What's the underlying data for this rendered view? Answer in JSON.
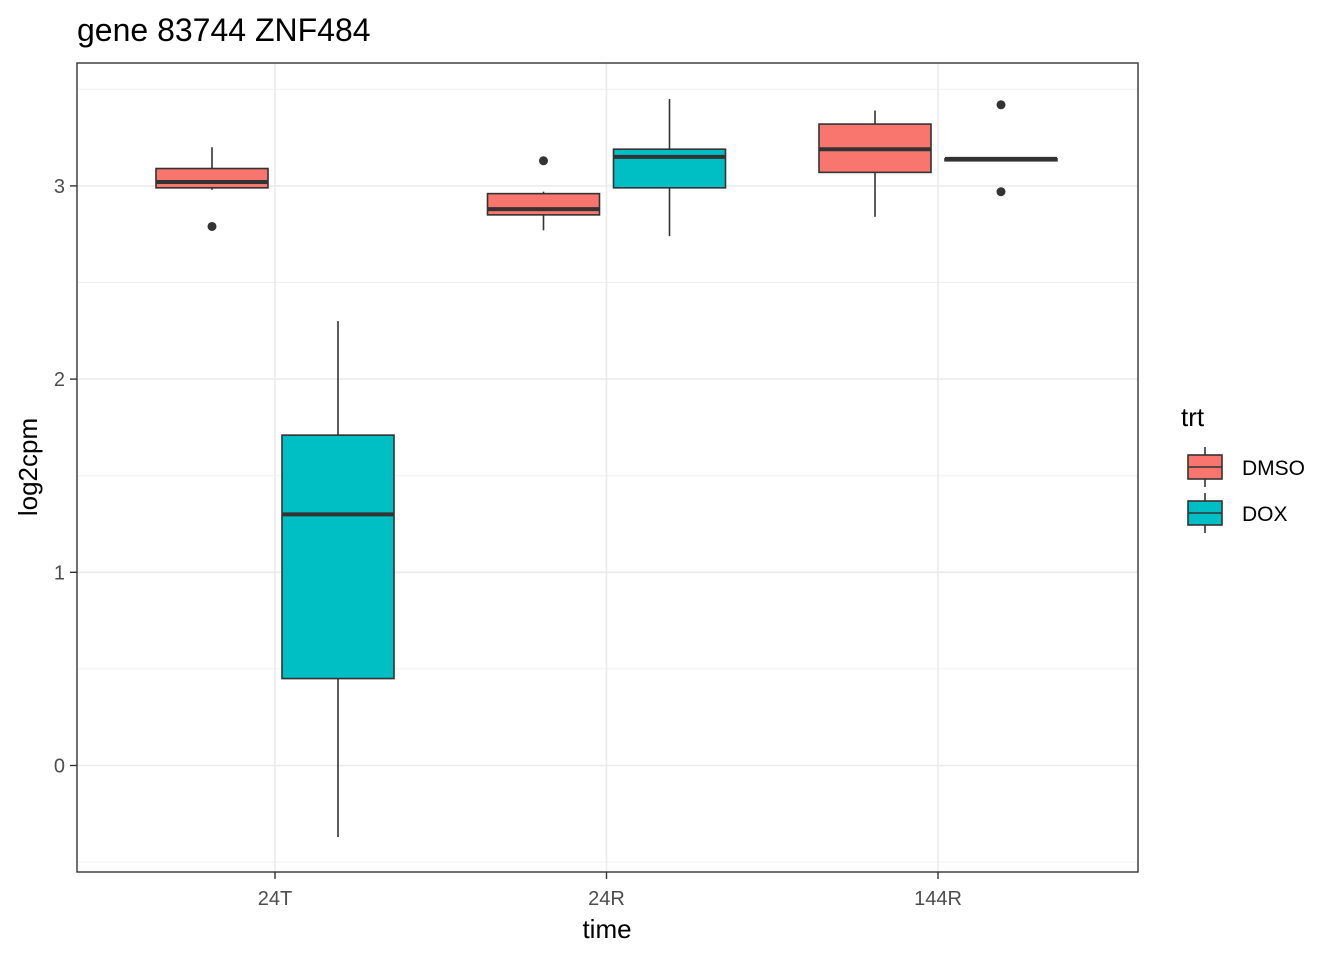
{
  "chart_data": {
    "type": "boxplot",
    "title": "gene 83744 ZNF484",
    "xlabel": "time",
    "ylabel": "log2cpm",
    "categories": [
      "24T",
      "24R",
      "144R"
    ],
    "ylim": [
      -0.55,
      3.5
    ],
    "yticks": [
      0,
      1,
      2,
      3
    ],
    "grid": true,
    "legend": {
      "title": "trt",
      "position": "right",
      "entries": [
        {
          "label": "DMSO",
          "color": "#F8766D"
        },
        {
          "label": "DOX",
          "color": "#00BFC4"
        }
      ]
    },
    "series": [
      {
        "name": "DMSO",
        "color": "#F8766D",
        "boxes": [
          {
            "category": "24T",
            "min": 2.98,
            "q1": 2.99,
            "median": 3.02,
            "q3": 3.09,
            "max": 3.2,
            "outliers": [
              2.79
            ]
          },
          {
            "category": "24R",
            "min": 2.77,
            "q1": 2.85,
            "median": 2.88,
            "q3": 2.96,
            "max": 2.97,
            "outliers": [
              3.13
            ]
          },
          {
            "category": "144R",
            "min": 2.84,
            "q1": 3.07,
            "median": 3.19,
            "q3": 3.32,
            "max": 3.39,
            "outliers": []
          }
        ]
      },
      {
        "name": "DOX",
        "color": "#00BFC4",
        "boxes": [
          {
            "category": "24T",
            "min": -0.37,
            "q1": 0.45,
            "median": 1.3,
            "q3": 1.71,
            "max": 2.3,
            "outliers": []
          },
          {
            "category": "24R",
            "min": 2.74,
            "q1": 2.99,
            "median": 3.15,
            "q3": 3.19,
            "max": 3.45,
            "outliers": []
          },
          {
            "category": "144R",
            "min": 3.13,
            "q1": 3.13,
            "median": 3.14,
            "q3": 3.14,
            "max": 3.14,
            "outliers": [
              3.42,
              2.97
            ]
          }
        ]
      }
    ]
  }
}
